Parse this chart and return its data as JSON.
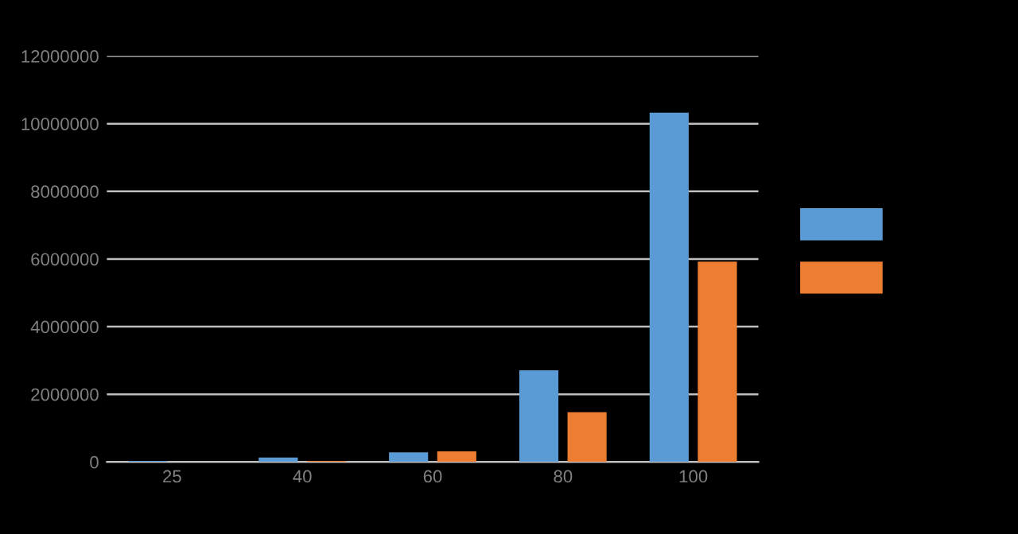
{
  "chart_data": {
    "type": "bar",
    "categories": [
      "25",
      "40",
      "60",
      "80",
      "100"
    ],
    "series": [
      {
        "color": "#5b9bd5",
        "values": [
          30000,
          130000,
          280000,
          2710000,
          10330000
        ]
      },
      {
        "color": "#ed7d31",
        "values": [
          0,
          30000,
          310000,
          1470000,
          5920000
        ]
      }
    ],
    "ylim": [
      0,
      12000000
    ],
    "yticks": [
      0,
      2000000,
      4000000,
      6000000,
      8000000,
      10000000,
      12000000
    ],
    "grid": "y"
  }
}
